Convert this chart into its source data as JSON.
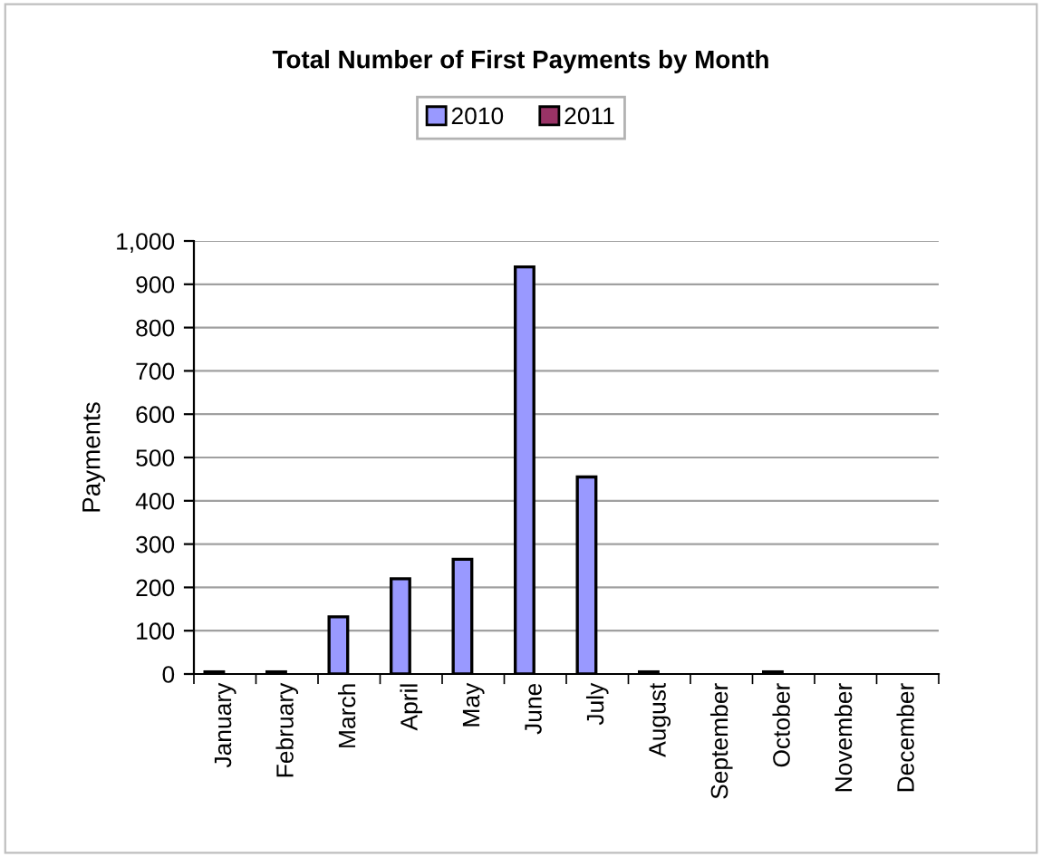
{
  "chart_data": {
    "type": "bar",
    "title": "Total Number of First Payments by Month",
    "ylabel": "Payments",
    "categories": [
      "January",
      "February",
      "March",
      "April",
      "May",
      "June",
      "July",
      "August",
      "September",
      "October",
      "November",
      "December"
    ],
    "series": [
      {
        "name": "2010",
        "color": "#9999ff",
        "values": [
          5,
          5,
          132,
          220,
          265,
          940,
          455,
          5,
          null,
          5,
          null,
          null
        ]
      },
      {
        "name": "2011",
        "color": "#993366",
        "values": [
          null,
          null,
          null,
          null,
          null,
          null,
          null,
          null,
          null,
          null,
          null,
          null
        ]
      }
    ],
    "ylim": [
      0,
      1000
    ],
    "yticks": [
      0,
      100,
      200,
      300,
      400,
      500,
      600,
      700,
      800,
      900,
      {
        "value": 1000,
        "label": "1,000"
      }
    ],
    "grid": "y",
    "legend": "top"
  }
}
